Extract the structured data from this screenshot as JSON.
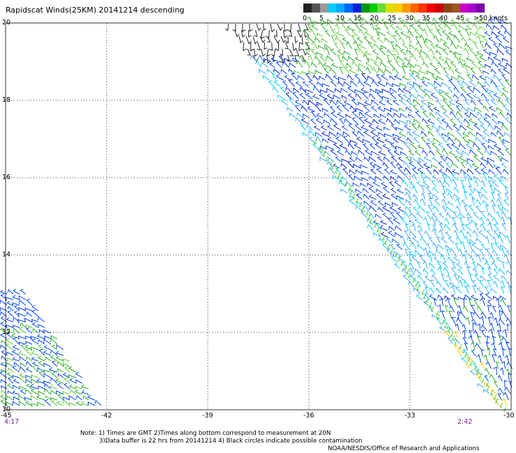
{
  "title": "Rapidscat Winds(25KM) 20141214 descending",
  "legend": {
    "labels": [
      "0",
      "5",
      "10",
      "15",
      "20",
      "25",
      "30",
      "35",
      "40",
      "45",
      ">50 knots"
    ],
    "colors": [
      "#222222",
      "#555555",
      "#999999",
      "#00ccff",
      "#00aaff",
      "#0066ff",
      "#0022dd",
      "#009900",
      "#00cc00",
      "#66dd33",
      "#dddd00",
      "#ffcc00",
      "#ff9900",
      "#ff6600",
      "#ff3300",
      "#ee0000",
      "#cc0000",
      "#8b4513",
      "#a0522d",
      "#cc00cc",
      "#aa00cc",
      "#7700aa"
    ]
  },
  "axes": {
    "x_ticks": [
      "-45",
      "-42",
      "-39",
      "-36",
      "-33",
      "-30"
    ],
    "y_ticks": [
      "20",
      "18",
      "16",
      "14",
      "12",
      "10"
    ],
    "x_range": [
      -45,
      -30
    ],
    "y_range": [
      10,
      20
    ]
  },
  "times": {
    "left": "4:17",
    "right": "2:42"
  },
  "notes": [
    "Note: 1) Times are GMT 2)Times along bottom correspond to measurement at 20N",
    "3)Data buffer is 22 hrs from 20141214 4) Black circles indicate possible contamination"
  ],
  "credit": "NOAA/NESDIS/Office of Research and Applications",
  "wind_colors": {
    "black": "#222222",
    "cyan": "#00ccff",
    "lightblue": "#33aaff",
    "blue": "#0044ee",
    "darkblue": "#0022cc",
    "green": "#22aa22",
    "lightgreen": "#55cc33",
    "yellow": "#ffcc00"
  }
}
